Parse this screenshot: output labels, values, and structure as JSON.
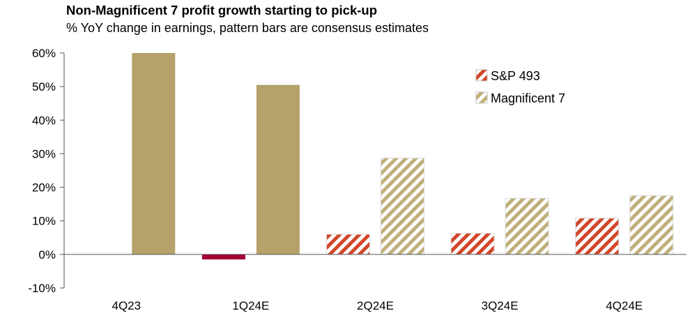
{
  "title": "Non-Magnificent 7 profit growth starting to pick-up",
  "subtitle": "% YoY change in earnings, pattern bars are consensus estimates",
  "colors": {
    "sp493_actual": "#A50034",
    "sp493_estimate": "#D2462A",
    "mag7_actual": "#B5A26A",
    "mag7_estimate": "#BFAF7A",
    "axis": "#555555"
  },
  "chart_data": {
    "type": "bar",
    "title": "Non-Magnificent 7 profit growth starting to pick-up",
    "subtitle": "% YoY change in earnings, pattern bars are consensus estimates",
    "categories": [
      "4Q23",
      "1Q24E",
      "2Q24E",
      "3Q24E",
      "4Q24E"
    ],
    "series": [
      {
        "name": "S&P 493",
        "values": [
          0,
          -1.5,
          6,
          6.3,
          10.8
        ],
        "estimate": [
          false,
          false,
          true,
          true,
          true
        ]
      },
      {
        "name": "Magnificent 7",
        "values": [
          60,
          50.5,
          28.7,
          16.7,
          17.5
        ],
        "estimate": [
          false,
          false,
          true,
          true,
          true
        ]
      }
    ],
    "ylim": [
      -10,
      60
    ],
    "yticks": [
      -10,
      0,
      10,
      20,
      30,
      40,
      50,
      60
    ],
    "ytick_labels": [
      "-10%",
      "0%",
      "10%",
      "20%",
      "30%",
      "40%",
      "50%",
      "60%"
    ],
    "xlabel": "",
    "ylabel": "",
    "legend_position": "top-right"
  }
}
